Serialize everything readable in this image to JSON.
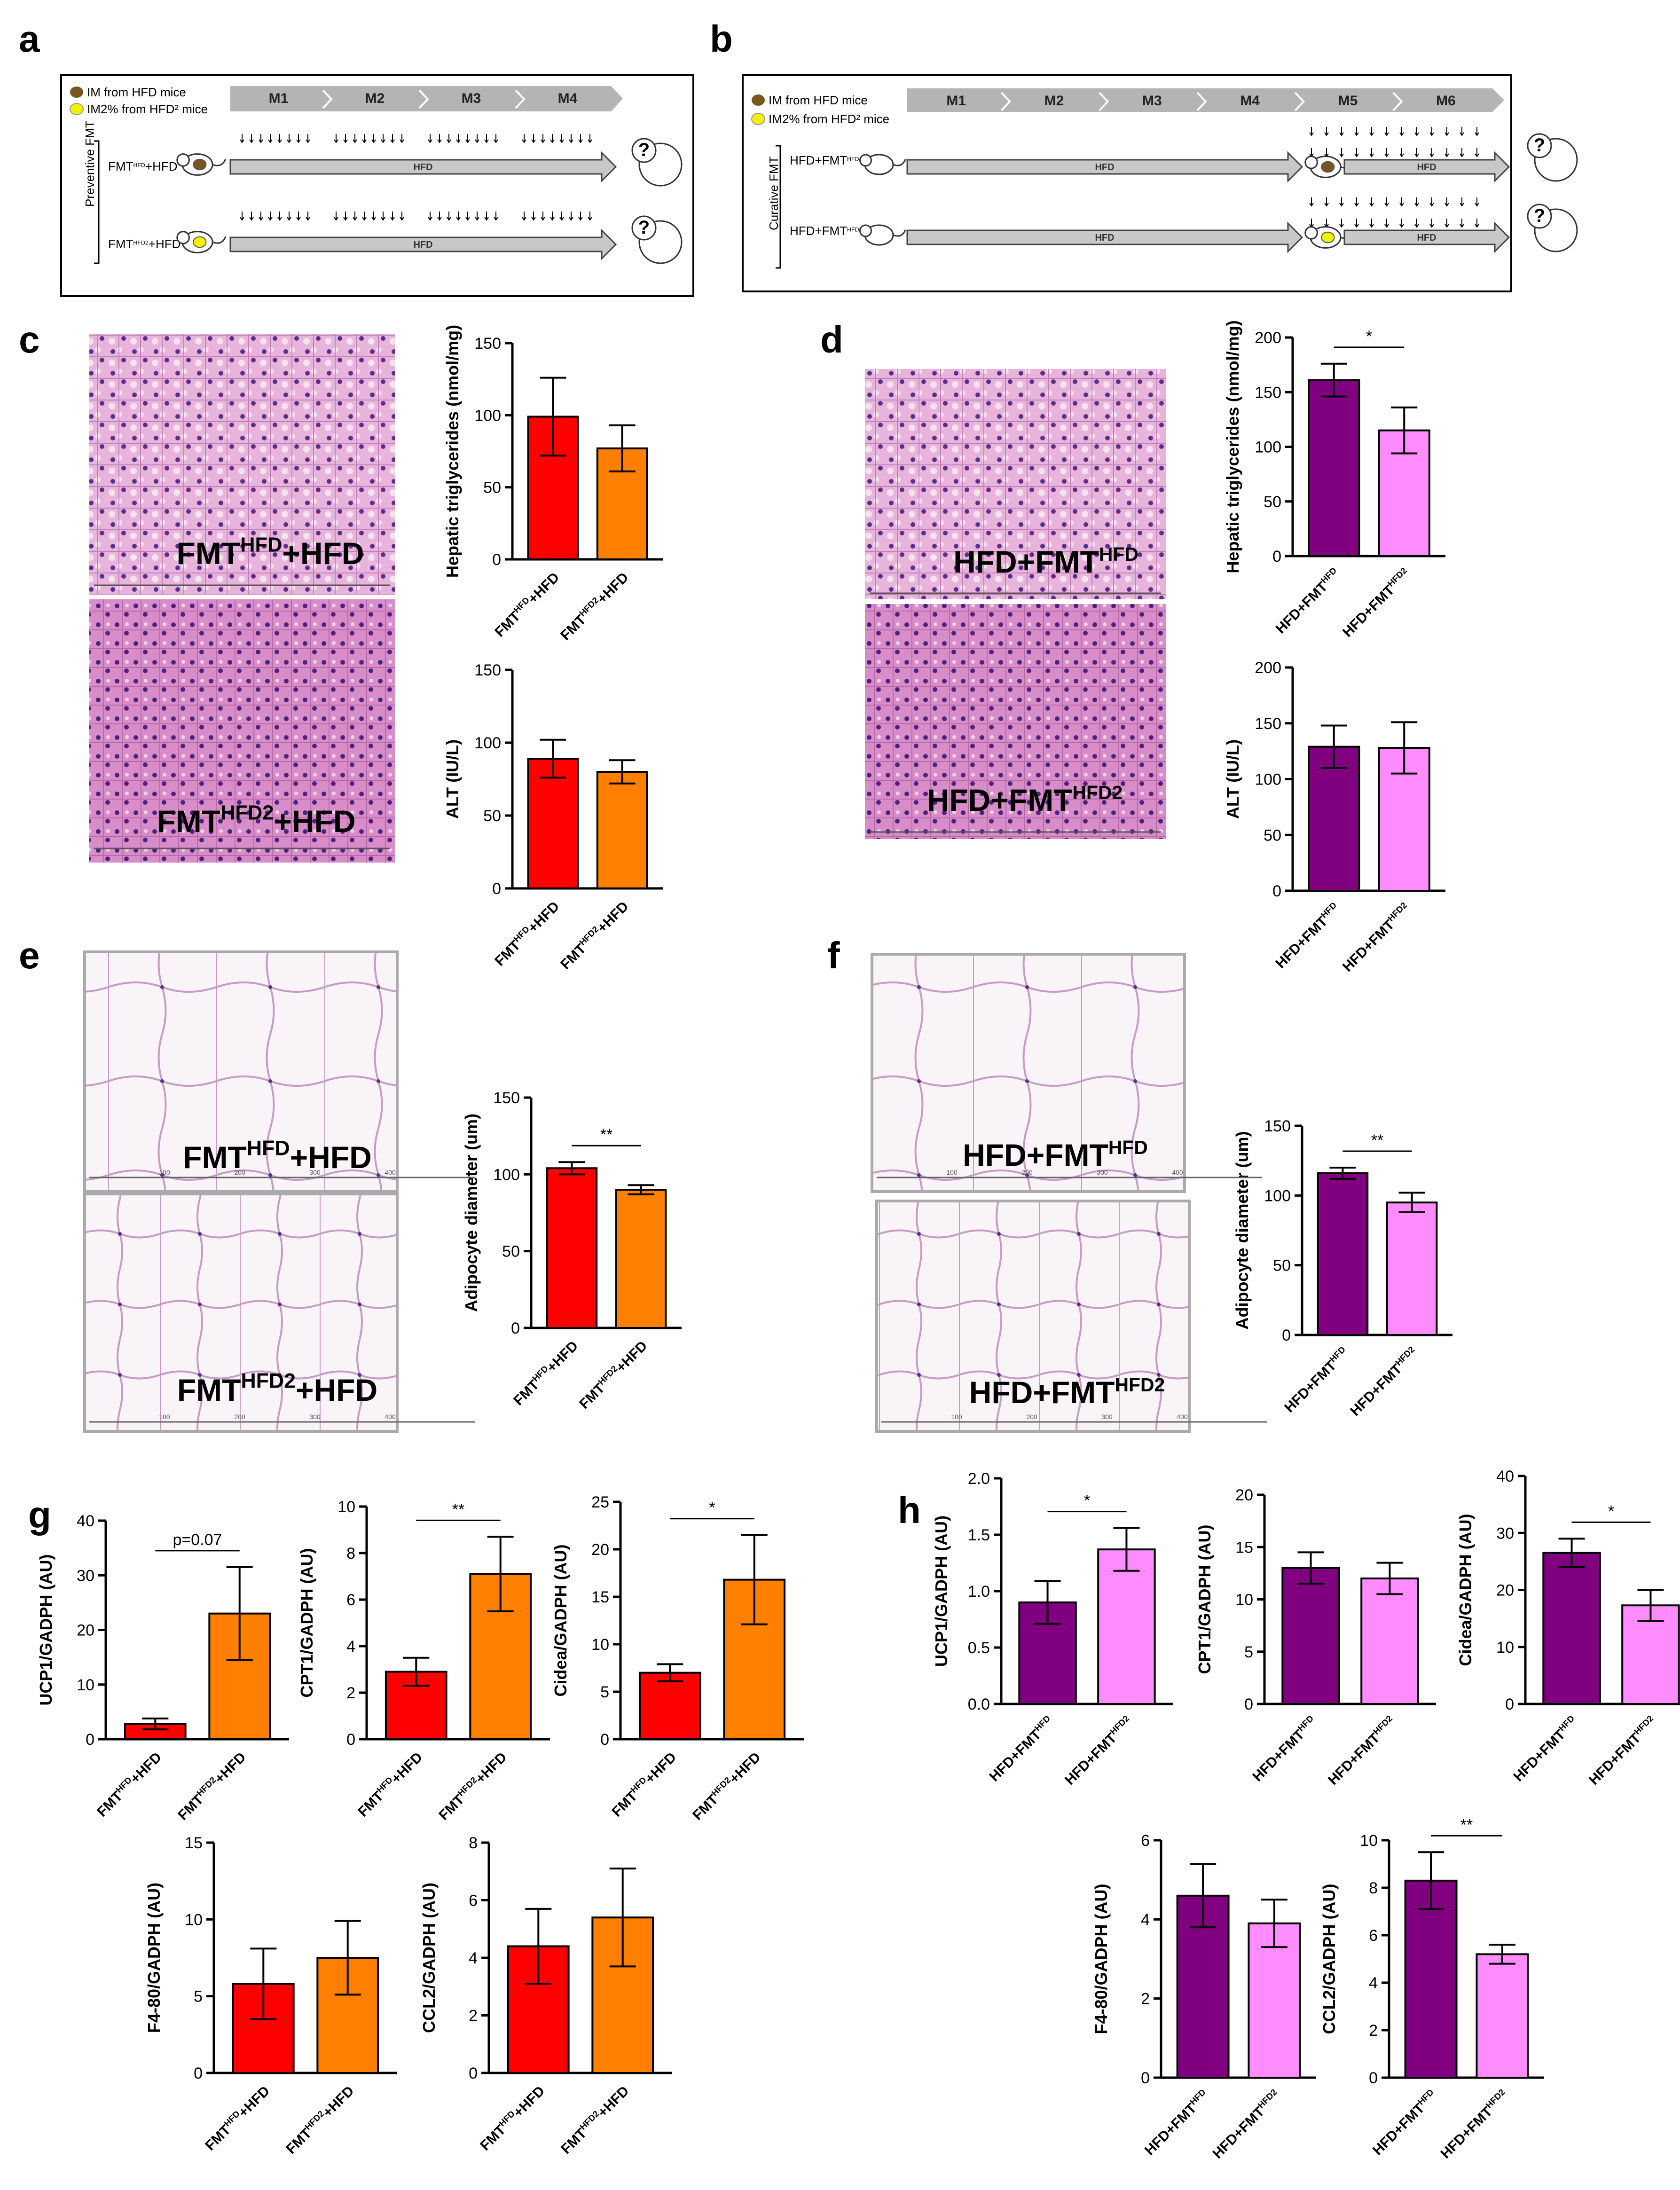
{
  "panel_letters": [
    "a",
    "b",
    "c",
    "d",
    "e",
    "f",
    "g",
    "h"
  ],
  "a": {
    "legend": [
      "IM from HFD mice",
      "IM2% from HFD² mice"
    ],
    "months": [
      "M1",
      "M2",
      "M3",
      "M4"
    ],
    "side_label": "Preventive FMT",
    "groups": [
      {
        "base": "FMT",
        "sup": "HFD",
        "rest": "+HFD",
        "bar": "HFD"
      },
      {
        "base": "FMT",
        "sup": "HFD2",
        "rest": "+HFD",
        "bar": "HFD"
      }
    ],
    "question": "?"
  },
  "b": {
    "legend": [
      "IM from HFD mice",
      "IM2% from HFD² mice"
    ],
    "months": [
      "M1",
      "M2",
      "M3",
      "M4",
      "M5",
      "M6"
    ],
    "side_label": "Curative FMT",
    "groups": [
      {
        "base": "HFD+FMT",
        "sup": "HFD",
        "rest": "",
        "bar": "HFD",
        "bar2": "HFD"
      },
      {
        "base": "HFD+FMT",
        "sup": "HFD2",
        "rest": "",
        "bar": "HFD",
        "bar2": "HFD"
      }
    ],
    "question": "?"
  },
  "histo": {
    "c_top": {
      "base": "FMT",
      "sup": "HFD",
      "rest": "+HFD"
    },
    "c_bot": {
      "base": "FMT",
      "sup": "HFD2",
      "rest": "+HFD"
    },
    "d_top": {
      "base": "HFD+FMT",
      "sup": "HFD",
      "rest": ""
    },
    "d_bot": {
      "base": "HFD+FMT",
      "sup": "HFD2",
      "rest": ""
    },
    "e_top": {
      "base": "FMT",
      "sup": "HFD",
      "rest": "+HFD"
    },
    "e_bot": {
      "base": "FMT",
      "sup": "HFD2",
      "rest": "+HFD"
    },
    "f_top": {
      "base": "HFD+FMT",
      "sup": "HFD",
      "rest": ""
    },
    "f_bot": {
      "base": "HFD+FMT",
      "sup": "HFD2",
      "rest": ""
    },
    "scale_ticks": [
      "100",
      "200",
      "300",
      "400"
    ]
  },
  "colors": {
    "red": "#ff0000",
    "orange": "#ff7f00",
    "purple": "#800080",
    "pink": "#ff8cff",
    "gray_bar": "#c8c8c8",
    "histo_liver": "#c86ab4",
    "histo_fat": "#f4eef4"
  },
  "chart_data": [
    {
      "id": "c1",
      "type": "bar",
      "ylabel": "Hepatic triglycerides (nmol/mg)",
      "ylim": [
        0,
        150
      ],
      "yticks": [
        0,
        50,
        100,
        150
      ],
      "categories": [
        {
          "base": "FMT",
          "sup": "HFD",
          "rest": "+HFD"
        },
        {
          "base": "FMT",
          "sup": "HFD2",
          "rest": "+HFD"
        }
      ],
      "values": [
        99,
        77
      ],
      "errors": [
        27,
        16
      ],
      "colors": [
        "red",
        "orange"
      ],
      "sig": null
    },
    {
      "id": "c2",
      "type": "bar",
      "ylabel": "ALT (IU/L)",
      "ylim": [
        0,
        150
      ],
      "yticks": [
        0,
        50,
        100,
        150
      ],
      "categories": [
        {
          "base": "FMT",
          "sup": "HFD",
          "rest": "+HFD"
        },
        {
          "base": "FMT",
          "sup": "HFD2",
          "rest": "+HFD"
        }
      ],
      "values": [
        89,
        80
      ],
      "errors": [
        13,
        8
      ],
      "colors": [
        "red",
        "orange"
      ],
      "sig": null
    },
    {
      "id": "d1",
      "type": "bar",
      "ylabel": "Hepatic triglycerides (nmol/mg)",
      "ylim": [
        0,
        200
      ],
      "yticks": [
        0,
        50,
        100,
        150,
        200
      ],
      "categories": [
        {
          "base": "HFD+FMT",
          "sup": "HFD",
          "rest": ""
        },
        {
          "base": "HFD+FMT",
          "sup": "HFD2",
          "rest": ""
        }
      ],
      "values": [
        161,
        115
      ],
      "errors": [
        15,
        21
      ],
      "colors": [
        "purple",
        "pink"
      ],
      "sig": "*"
    },
    {
      "id": "d2",
      "type": "bar",
      "ylabel": "ALT (IU/L)",
      "ylim": [
        0,
        200
      ],
      "yticks": [
        0,
        50,
        100,
        150,
        200
      ],
      "categories": [
        {
          "base": "HFD+FMT",
          "sup": "HFD",
          "rest": ""
        },
        {
          "base": "HFD+FMT",
          "sup": "HFD2",
          "rest": ""
        }
      ],
      "values": [
        129,
        128
      ],
      "errors": [
        19,
        23
      ],
      "colors": [
        "purple",
        "pink"
      ],
      "sig": null
    },
    {
      "id": "e1",
      "type": "bar",
      "ylabel": "Adipocyte diameter (um)",
      "ylim": [
        0,
        150
      ],
      "yticks": [
        0,
        50,
        100,
        150
      ],
      "categories": [
        {
          "base": "FMT",
          "sup": "HFD",
          "rest": "+HFD"
        },
        {
          "base": "FMT",
          "sup": "HFD2",
          "rest": "+HFD"
        }
      ],
      "values": [
        104,
        90
      ],
      "errors": [
        4,
        3
      ],
      "colors": [
        "red",
        "orange"
      ],
      "sig": "**"
    },
    {
      "id": "f1",
      "type": "bar",
      "ylabel": "Adipocyte diameter (um)",
      "ylim": [
        0,
        150
      ],
      "yticks": [
        0,
        50,
        100,
        150
      ],
      "categories": [
        {
          "base": "HFD+FMT",
          "sup": "HFD",
          "rest": ""
        },
        {
          "base": "HFD+FMT",
          "sup": "HFD2",
          "rest": ""
        }
      ],
      "values": [
        116,
        95
      ],
      "errors": [
        4,
        7
      ],
      "colors": [
        "purple",
        "pink"
      ],
      "sig": "**"
    },
    {
      "id": "g1",
      "type": "bar",
      "ylabel": "UCP1/GADPH (AU)",
      "ylim": [
        0,
        40
      ],
      "yticks": [
        0,
        10,
        20,
        30,
        40
      ],
      "categories": [
        {
          "base": "FMT",
          "sup": "HFD",
          "rest": "+HFD"
        },
        {
          "base": "FMT",
          "sup": "HFD2",
          "rest": "+HFD"
        }
      ],
      "values": [
        2.8,
        23
      ],
      "errors": [
        1,
        8.5
      ],
      "colors": [
        "red",
        "orange"
      ],
      "sig": "p=0.07"
    },
    {
      "id": "g2",
      "type": "bar",
      "ylabel": "CPT1/GADPH (AU)",
      "ylim": [
        0,
        10
      ],
      "yticks": [
        0,
        2,
        4,
        6,
        8,
        10
      ],
      "categories": [
        {
          "base": "FMT",
          "sup": "HFD",
          "rest": "+HFD"
        },
        {
          "base": "FMT",
          "sup": "HFD2",
          "rest": "+HFD"
        }
      ],
      "values": [
        2.9,
        7.1
      ],
      "errors": [
        0.6,
        1.6
      ],
      "colors": [
        "red",
        "orange"
      ],
      "sig": "**"
    },
    {
      "id": "g3",
      "type": "bar",
      "ylabel": "Cidea/GADPH (AU)",
      "ylim": [
        0,
        25
      ],
      "yticks": [
        0,
        5,
        10,
        15,
        20,
        25
      ],
      "categories": [
        {
          "base": "FMT",
          "sup": "HFD",
          "rest": "+HFD"
        },
        {
          "base": "FMT",
          "sup": "HFD2",
          "rest": "+HFD"
        }
      ],
      "values": [
        7,
        16.8
      ],
      "errors": [
        0.9,
        4.7
      ],
      "colors": [
        "red",
        "orange"
      ],
      "sig": "*"
    },
    {
      "id": "g4",
      "type": "bar",
      "ylabel": "F4-80/GADPH (AU)",
      "ylim": [
        0,
        15
      ],
      "yticks": [
        0,
        5,
        10,
        15
      ],
      "categories": [
        {
          "base": "FMT",
          "sup": "HFD",
          "rest": "+HFD"
        },
        {
          "base": "FMT",
          "sup": "HFD2",
          "rest": "+HFD"
        }
      ],
      "values": [
        5.8,
        7.5
      ],
      "errors": [
        2.3,
        2.4
      ],
      "colors": [
        "red",
        "orange"
      ],
      "sig": null
    },
    {
      "id": "g5",
      "type": "bar",
      "ylabel": "CCL2/GADPH (AU)",
      "ylim": [
        0,
        8
      ],
      "yticks": [
        0,
        2,
        4,
        6,
        8
      ],
      "categories": [
        {
          "base": "FMT",
          "sup": "HFD",
          "rest": "+HFD"
        },
        {
          "base": "FMT",
          "sup": "HFD2",
          "rest": "+HFD"
        }
      ],
      "values": [
        4.4,
        5.4
      ],
      "errors": [
        1.3,
        1.7
      ],
      "colors": [
        "red",
        "orange"
      ],
      "sig": null
    },
    {
      "id": "h1",
      "type": "bar",
      "ylabel": "UCP1/GADPH (AU)",
      "ylim": [
        0,
        2
      ],
      "yticks": [
        "0.0",
        "0.5",
        "1.0",
        "1.5",
        "2.0"
      ],
      "categories": [
        {
          "base": "HFD+FMT",
          "sup": "HFD",
          "rest": ""
        },
        {
          "base": "HFD+FMT",
          "sup": "HFD2",
          "rest": ""
        }
      ],
      "values": [
        0.9,
        1.37
      ],
      "errors": [
        0.19,
        0.19
      ],
      "colors": [
        "purple",
        "pink"
      ],
      "sig": "*"
    },
    {
      "id": "h2",
      "type": "bar",
      "ylabel": "CPT1/GADPH (AU)",
      "ylim": [
        0,
        20
      ],
      "yticks": [
        0,
        5,
        10,
        15,
        20
      ],
      "categories": [
        {
          "base": "HFD+FMT",
          "sup": "HFD",
          "rest": ""
        },
        {
          "base": "HFD+FMT",
          "sup": "HFD2",
          "rest": ""
        }
      ],
      "values": [
        13,
        12
      ],
      "errors": [
        1.5,
        1.5
      ],
      "colors": [
        "purple",
        "pink"
      ],
      "sig": null
    },
    {
      "id": "h3",
      "type": "bar",
      "ylabel": "Cidea/GADPH (AU)",
      "ylim": [
        0,
        40
      ],
      "yticks": [
        0,
        10,
        20,
        30,
        40
      ],
      "categories": [
        {
          "base": "HFD+FMT",
          "sup": "HFD",
          "rest": ""
        },
        {
          "base": "HFD+FMT",
          "sup": "HFD2",
          "rest": ""
        }
      ],
      "values": [
        26.5,
        17.3
      ],
      "errors": [
        2.5,
        2.7
      ],
      "colors": [
        "purple",
        "pink"
      ],
      "sig": "*"
    },
    {
      "id": "h4",
      "type": "bar",
      "ylabel": "F4-80/GADPH (AU)",
      "ylim": [
        0,
        6
      ],
      "yticks": [
        0,
        2,
        4,
        6
      ],
      "categories": [
        {
          "base": "HFD+FMT",
          "sup": "HFD",
          "rest": ""
        },
        {
          "base": "HFD+FMT",
          "sup": "HFD2",
          "rest": ""
        }
      ],
      "values": [
        4.6,
        3.9
      ],
      "errors": [
        0.8,
        0.6
      ],
      "colors": [
        "purple",
        "pink"
      ],
      "sig": null
    },
    {
      "id": "h5",
      "type": "bar",
      "ylabel": "CCL2/GADPH (AU)",
      "ylim": [
        0,
        10
      ],
      "yticks": [
        0,
        2,
        4,
        6,
        8,
        10
      ],
      "categories": [
        {
          "base": "HFD+FMT",
          "sup": "HFD",
          "rest": ""
        },
        {
          "base": "HFD+FMT",
          "sup": "HFD2",
          "rest": ""
        }
      ],
      "values": [
        8.3,
        5.2
      ],
      "errors": [
        1.2,
        0.4
      ],
      "colors": [
        "purple",
        "pink"
      ],
      "sig": "**"
    }
  ]
}
